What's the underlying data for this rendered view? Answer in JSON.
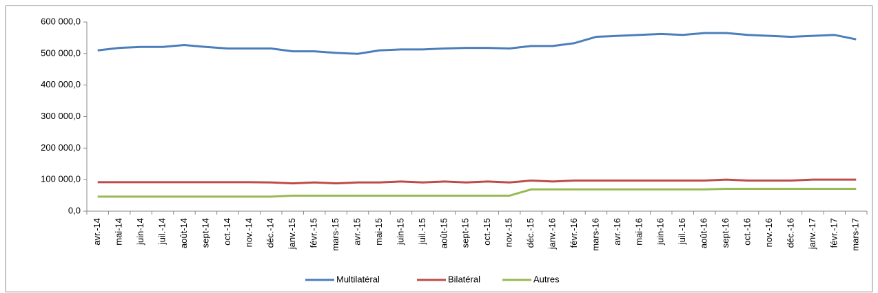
{
  "chart_data": {
    "type": "line",
    "categories": [
      "avr.-14",
      "mai-14",
      "juin-14",
      "juil.-14",
      "août-14",
      "sept-14",
      "oct.-14",
      "nov.-14",
      "déc.-14",
      "janv.-15",
      "févr.-15",
      "mars-15",
      "avr.-15",
      "mai-15",
      "juin-15",
      "juil.-15",
      "août-15",
      "sept-15",
      "oct.-15",
      "nov.-15",
      "déc.-15",
      "janv.-16",
      "févr.-16",
      "mars-16",
      "avr.-16",
      "mai-16",
      "juin-16",
      "juil.-16",
      "août-16",
      "sept-16",
      "oct.-16",
      "nov.-16",
      "déc.-16",
      "janv.-17",
      "févr.-17",
      "mars-17"
    ],
    "series": [
      {
        "name": "Multilatéral",
        "color": "#4a7ebb",
        "values": [
          510000,
          518000,
          521000,
          521000,
          527000,
          521000,
          516000,
          516000,
          516000,
          507000,
          507000,
          502000,
          499000,
          510000,
          513000,
          513000,
          516000,
          518000,
          518000,
          516000,
          524000,
          524000,
          533000,
          553000,
          556000,
          559000,
          562000,
          559000,
          565000,
          565000,
          559000,
          556000,
          553000,
          556000,
          559000,
          545000
        ]
      },
      {
        "name": "Bilatéral",
        "color": "#be4b48",
        "values": [
          92000,
          92000,
          92000,
          92000,
          92000,
          92000,
          92000,
          92000,
          91000,
          88000,
          91000,
          88000,
          91000,
          91000,
          94000,
          91000,
          94000,
          91000,
          94000,
          91000,
          97000,
          94000,
          97000,
          97000,
          97000,
          97000,
          97000,
          97000,
          97000,
          100000,
          97000,
          97000,
          97000,
          100000,
          100000,
          100000
        ]
      },
      {
        "name": "Autres",
        "color": "#98b954",
        "values": [
          46000,
          46000,
          46000,
          46000,
          46000,
          46000,
          46000,
          46000,
          46000,
          49000,
          49000,
          49000,
          49000,
          49000,
          49000,
          49000,
          49000,
          49000,
          49000,
          49000,
          69000,
          69000,
          69000,
          69000,
          69000,
          69000,
          69000,
          69000,
          69000,
          71000,
          71000,
          71000,
          71000,
          71000,
          71000,
          71000
        ]
      }
    ],
    "ylim": [
      0,
      600000
    ],
    "yticks": [
      {
        "value": 0,
        "label": "0,0"
      },
      {
        "value": 100000,
        "label": "100 000,0"
      },
      {
        "value": 200000,
        "label": "200 000,0"
      },
      {
        "value": 300000,
        "label": "300 000,0"
      },
      {
        "value": 400000,
        "label": "400 000,0"
      },
      {
        "value": 500000,
        "label": "500 000,0"
      },
      {
        "value": 600000,
        "label": "600 000,0"
      }
    ],
    "grid": false,
    "legend": "bottom"
  }
}
